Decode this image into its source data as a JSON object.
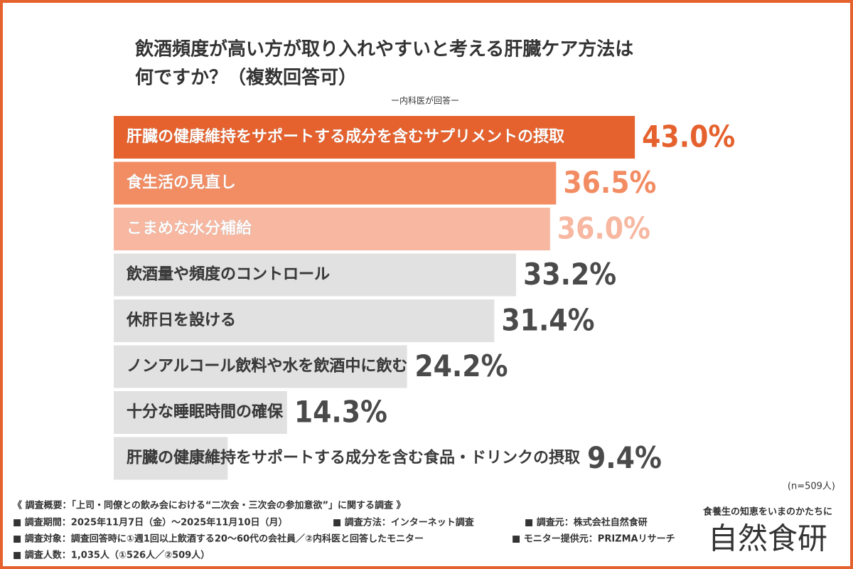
{
  "chart_data": {
    "type": "hbar",
    "title": [
      "飲酒頻度が高い方が取り入れやすいと考える肝臓ケア方法は",
      "何ですか？（複数回答可）"
    ],
    "subtitle": "ー内科医が回答ー",
    "categories": [
      "肝臓の健康維持をサポートする成分を含むサプリメントの摂取",
      "食生活の見直し",
      "こまめな水分補給",
      "飲酒量や頻度のコントロール",
      "休肝日を設ける",
      "ノンアルコール飲料や水を飲酒中に飲む",
      "十分な睡眠時間の確保",
      "肝臓の健康維持をサポートする成分を含む食品・ドリンクの摂取"
    ],
    "values": [
      43.0,
      36.5,
      36.0,
      33.2,
      31.4,
      24.2,
      14.3,
      9.4
    ],
    "value_labels": [
      "43.0%",
      "36.5%",
      "36.0%",
      "33.2%",
      "31.4%",
      "24.2%",
      "14.3%",
      "9.4%"
    ],
    "colors": [
      "#e5622e",
      "#f28c63",
      "#f7b7a0",
      "#e2e1e1",
      "#e2e1e1",
      "#e2e1e1",
      "#e2e1e1",
      "#e2e1e1"
    ],
    "value_colors": [
      "#e5622e",
      "#f28c63",
      "#f7b7a0",
      "#4a4a4a",
      "#4a4a4a",
      "#4a4a4a",
      "#4a4a4a",
      "#4a4a4a"
    ],
    "label_colors": [
      "#ffffff",
      "#ffffff",
      "#ffffff",
      "#3a3a3a",
      "#3a3a3a",
      "#3a3a3a",
      "#3a3a3a",
      "#3a3a3a"
    ],
    "note": "(n=509人)"
  },
  "survey": {
    "heading": "《 調査概要：「上司・同僚との飲み会における“二次会・三次会の参加意欲”」に関する調査 》",
    "items": [
      "■ 調査期間：2025年11月7日（金）〜2025年11月10日（月）",
      "■ 調査方法：インターネット調査",
      "■ 調査元：株式会社自然食研",
      "■ 調査対象：調査回答時に①週1回以上飲酒する20～60代の会社員／②内科医と回答したモニター",
      "■ モニター提供元：PRIZMAリサーチ",
      "■ 調査人数：1,035人（①526人／②509人）"
    ]
  },
  "brand": {
    "tagline": "食養生の知恵をいまのかたちに",
    "logo": "自然食研"
  }
}
